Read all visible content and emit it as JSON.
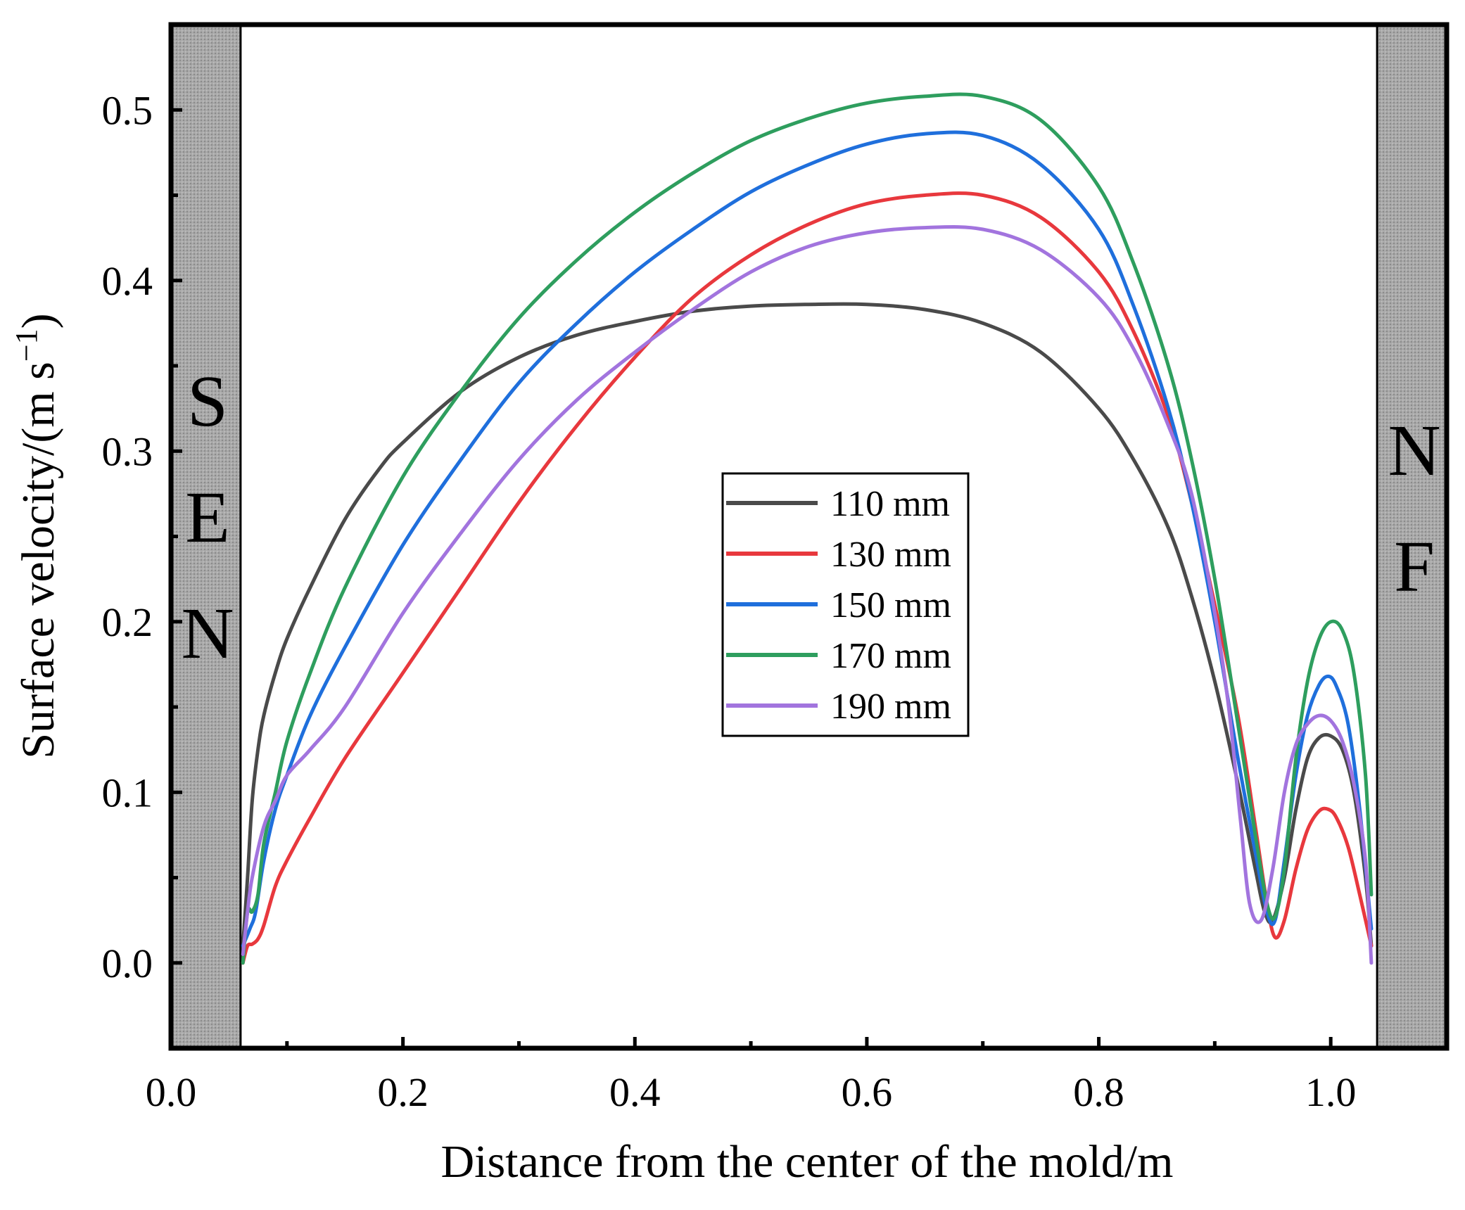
{
  "chart_data": {
    "type": "line",
    "title": "",
    "xlabel": "Distance from the center of the mold/m",
    "ylabel": "Surface velocity/(m s",
    "ylabel_sup": "−1",
    "ylabel_close": ")",
    "xlim": [
      0.0,
      1.1
    ],
    "ylim": [
      -0.05,
      0.55
    ],
    "xticks": [
      0.0,
      0.2,
      0.4,
      0.6,
      0.8,
      1.0
    ],
    "xtick_labels": [
      "0.0",
      "0.2",
      "0.4",
      "0.6",
      "0.8",
      "1.0"
    ],
    "yticks": [
      0.0,
      0.1,
      0.2,
      0.3,
      0.4,
      0.5
    ],
    "ytick_labels": [
      "0.0",
      "0.1",
      "0.2",
      "0.3",
      "0.4",
      "0.5"
    ],
    "grid": false,
    "legend_position": "center",
    "regions": [
      {
        "name": "SEN",
        "letters": [
          "S",
          "E",
          "N"
        ],
        "x_range": [
          0.0,
          0.06
        ],
        "fill": "#a9a9a9"
      },
      {
        "name": "NF",
        "letters": [
          "N",
          "F"
        ],
        "x_range": [
          1.04,
          1.1
        ],
        "fill": "#a9a9a9"
      }
    ],
    "series": [
      {
        "name": "110 mm",
        "color": "#4a4a4a",
        "x": [
          0.062,
          0.066,
          0.07,
          0.075,
          0.08,
          0.09,
          0.1,
          0.12,
          0.15,
          0.18,
          0.2,
          0.25,
          0.3,
          0.35,
          0.4,
          0.45,
          0.5,
          0.55,
          0.6,
          0.65,
          0.7,
          0.75,
          0.8,
          0.83,
          0.86,
          0.88,
          0.9,
          0.92,
          0.935,
          0.943,
          0.95,
          0.96,
          0.97,
          0.98,
          0.99,
          1.0,
          1.01,
          1.02,
          1.03,
          1.035
        ],
        "values": [
          0.01,
          0.05,
          0.095,
          0.125,
          0.145,
          0.17,
          0.19,
          0.22,
          0.26,
          0.29,
          0.305,
          0.335,
          0.355,
          0.368,
          0.376,
          0.382,
          0.385,
          0.386,
          0.386,
          0.383,
          0.375,
          0.358,
          0.325,
          0.295,
          0.255,
          0.215,
          0.165,
          0.105,
          0.055,
          0.03,
          0.025,
          0.05,
          0.09,
          0.12,
          0.132,
          0.133,
          0.125,
          0.1,
          0.05,
          0.01
        ]
      },
      {
        "name": "130 mm",
        "color": "#e8383d",
        "x": [
          0.062,
          0.066,
          0.07,
          0.075,
          0.08,
          0.09,
          0.1,
          0.12,
          0.15,
          0.2,
          0.25,
          0.3,
          0.35,
          0.4,
          0.45,
          0.5,
          0.55,
          0.6,
          0.65,
          0.7,
          0.75,
          0.8,
          0.83,
          0.86,
          0.88,
          0.9,
          0.92,
          0.935,
          0.945,
          0.952,
          0.96,
          0.97,
          0.98,
          0.99,
          0.998,
          1.005,
          1.015,
          1.025,
          1.035
        ],
        "values": [
          0.0,
          0.01,
          0.011,
          0.014,
          0.022,
          0.045,
          0.06,
          0.085,
          0.12,
          0.17,
          0.22,
          0.27,
          0.315,
          0.355,
          0.39,
          0.415,
          0.433,
          0.445,
          0.45,
          0.45,
          0.437,
          0.405,
          0.37,
          0.32,
          0.27,
          0.21,
          0.145,
          0.08,
          0.035,
          0.015,
          0.025,
          0.055,
          0.078,
          0.089,
          0.09,
          0.085,
          0.068,
          0.04,
          0.01
        ]
      },
      {
        "name": "150 mm",
        "color": "#1f6fdc",
        "x": [
          0.062,
          0.068,
          0.073,
          0.08,
          0.09,
          0.1,
          0.12,
          0.15,
          0.2,
          0.25,
          0.3,
          0.35,
          0.4,
          0.45,
          0.5,
          0.55,
          0.6,
          0.65,
          0.7,
          0.75,
          0.8,
          0.83,
          0.86,
          0.88,
          0.9,
          0.92,
          0.935,
          0.945,
          0.952,
          0.96,
          0.97,
          0.98,
          0.99,
          0.998,
          1.005,
          1.015,
          1.025,
          1.035
        ],
        "values": [
          0.01,
          0.02,
          0.03,
          0.06,
          0.09,
          0.11,
          0.145,
          0.185,
          0.245,
          0.295,
          0.34,
          0.375,
          0.405,
          0.43,
          0.452,
          0.468,
          0.48,
          0.486,
          0.485,
          0.468,
          0.43,
          0.385,
          0.325,
          0.27,
          0.2,
          0.12,
          0.065,
          0.03,
          0.025,
          0.06,
          0.11,
          0.145,
          0.163,
          0.168,
          0.162,
          0.14,
          0.09,
          0.02
        ]
      },
      {
        "name": "170 mm",
        "color": "#2e9e5e",
        "x": [
          0.062,
          0.066,
          0.07,
          0.075,
          0.08,
          0.09,
          0.1,
          0.12,
          0.15,
          0.2,
          0.25,
          0.3,
          0.35,
          0.4,
          0.45,
          0.5,
          0.55,
          0.6,
          0.65,
          0.7,
          0.75,
          0.8,
          0.83,
          0.86,
          0.88,
          0.9,
          0.92,
          0.935,
          0.945,
          0.952,
          0.96,
          0.97,
          0.98,
          0.99,
          1.0,
          1.01,
          1.02,
          1.03,
          1.035
        ],
        "values": [
          0.0,
          0.03,
          0.03,
          0.04,
          0.07,
          0.1,
          0.13,
          0.17,
          0.22,
          0.285,
          0.335,
          0.378,
          0.412,
          0.44,
          0.463,
          0.482,
          0.495,
          0.504,
          0.508,
          0.508,
          0.494,
          0.455,
          0.41,
          0.35,
          0.295,
          0.225,
          0.14,
          0.075,
          0.035,
          0.027,
          0.055,
          0.12,
          0.165,
          0.19,
          0.2,
          0.195,
          0.17,
          0.11,
          0.04
        ]
      },
      {
        "name": "190 mm",
        "color": "#a274de",
        "x": [
          0.062,
          0.066,
          0.07,
          0.08,
          0.09,
          0.1,
          0.12,
          0.15,
          0.2,
          0.25,
          0.3,
          0.35,
          0.4,
          0.45,
          0.5,
          0.55,
          0.6,
          0.65,
          0.7,
          0.75,
          0.8,
          0.83,
          0.86,
          0.88,
          0.9,
          0.912,
          0.922,
          0.93,
          0.94,
          0.95,
          0.96,
          0.97,
          0.98,
          0.99,
          1.0,
          1.01,
          1.02,
          1.03,
          1.035
        ],
        "values": [
          0.005,
          0.03,
          0.05,
          0.08,
          0.095,
          0.11,
          0.125,
          0.15,
          0.205,
          0.252,
          0.295,
          0.33,
          0.358,
          0.383,
          0.405,
          0.42,
          0.428,
          0.431,
          0.43,
          0.418,
          0.39,
          0.36,
          0.315,
          0.275,
          0.205,
          0.15,
          0.085,
          0.035,
          0.025,
          0.055,
          0.1,
          0.128,
          0.14,
          0.145,
          0.142,
          0.13,
          0.105,
          0.06,
          0.0
        ]
      }
    ]
  }
}
